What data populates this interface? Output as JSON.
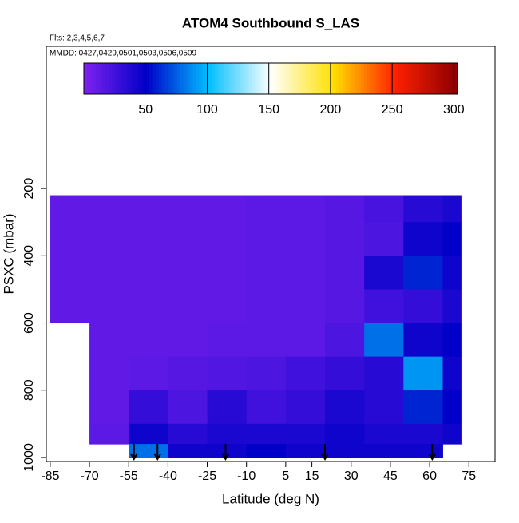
{
  "chart_data": {
    "type": "heatmap",
    "title": "ATOM4 Southbound S_LAS",
    "subtitle": "Flts: 2,3,4,5,6,7",
    "annotation": "MMDD: 0427,0429,0501,0503,0506,0509",
    "x_label": "Latitude (deg N)",
    "y_label": "PSXC (mbar)",
    "xlim": [
      -86.5,
      85
    ],
    "xticks": [
      -85,
      -70,
      -55,
      -40,
      -25,
      -10,
      5,
      15,
      30,
      45,
      60,
      75
    ],
    "ylim": [
      -223,
      1012
    ],
    "yticks": [
      200,
      400,
      600,
      800,
      1000
    ],
    "clim": [
      0,
      303
    ],
    "cticks": [
      50,
      100,
      150,
      200,
      250,
      300
    ],
    "colormap": [
      "#7f22f0",
      "#0000c8",
      "#00bfff",
      "#ffffff",
      "#ffe000",
      "#ff2000",
      "#8b0000"
    ],
    "x_edges": [
      -85,
      -70,
      -55,
      -40,
      -25,
      -10,
      5,
      20,
      35,
      50,
      65,
      72
    ],
    "y_edges": [
      220,
      300,
      400,
      500,
      600,
      700,
      800,
      900,
      960,
      1000
    ],
    "z": [
      [
        12,
        12,
        12,
        12,
        12,
        14,
        14,
        16,
        22,
        35,
        40
      ],
      [
        12,
        12,
        12,
        12,
        12,
        14,
        14,
        16,
        20,
        45,
        50
      ],
      [
        12,
        12,
        12,
        12,
        12,
        14,
        14,
        16,
        40,
        60,
        45
      ],
      [
        12,
        12,
        12,
        12,
        12,
        14,
        14,
        16,
        25,
        30,
        40
      ],
      [
        null,
        12,
        12,
        12,
        14,
        14,
        14,
        20,
        80,
        45,
        50
      ],
      [
        null,
        12,
        14,
        16,
        18,
        20,
        25,
        30,
        35,
        90,
        45
      ],
      [
        null,
        12,
        30,
        20,
        35,
        25,
        30,
        40,
        35,
        60,
        50
      ],
      [
        null,
        14,
        45,
        35,
        40,
        40,
        40,
        45,
        40,
        40,
        45
      ],
      [
        null,
        null,
        80,
        45,
        45,
        50,
        45,
        45,
        45,
        45,
        null
      ]
    ],
    "arrows_lat": [
      -53,
      -44,
      -18,
      20,
      61
    ]
  }
}
